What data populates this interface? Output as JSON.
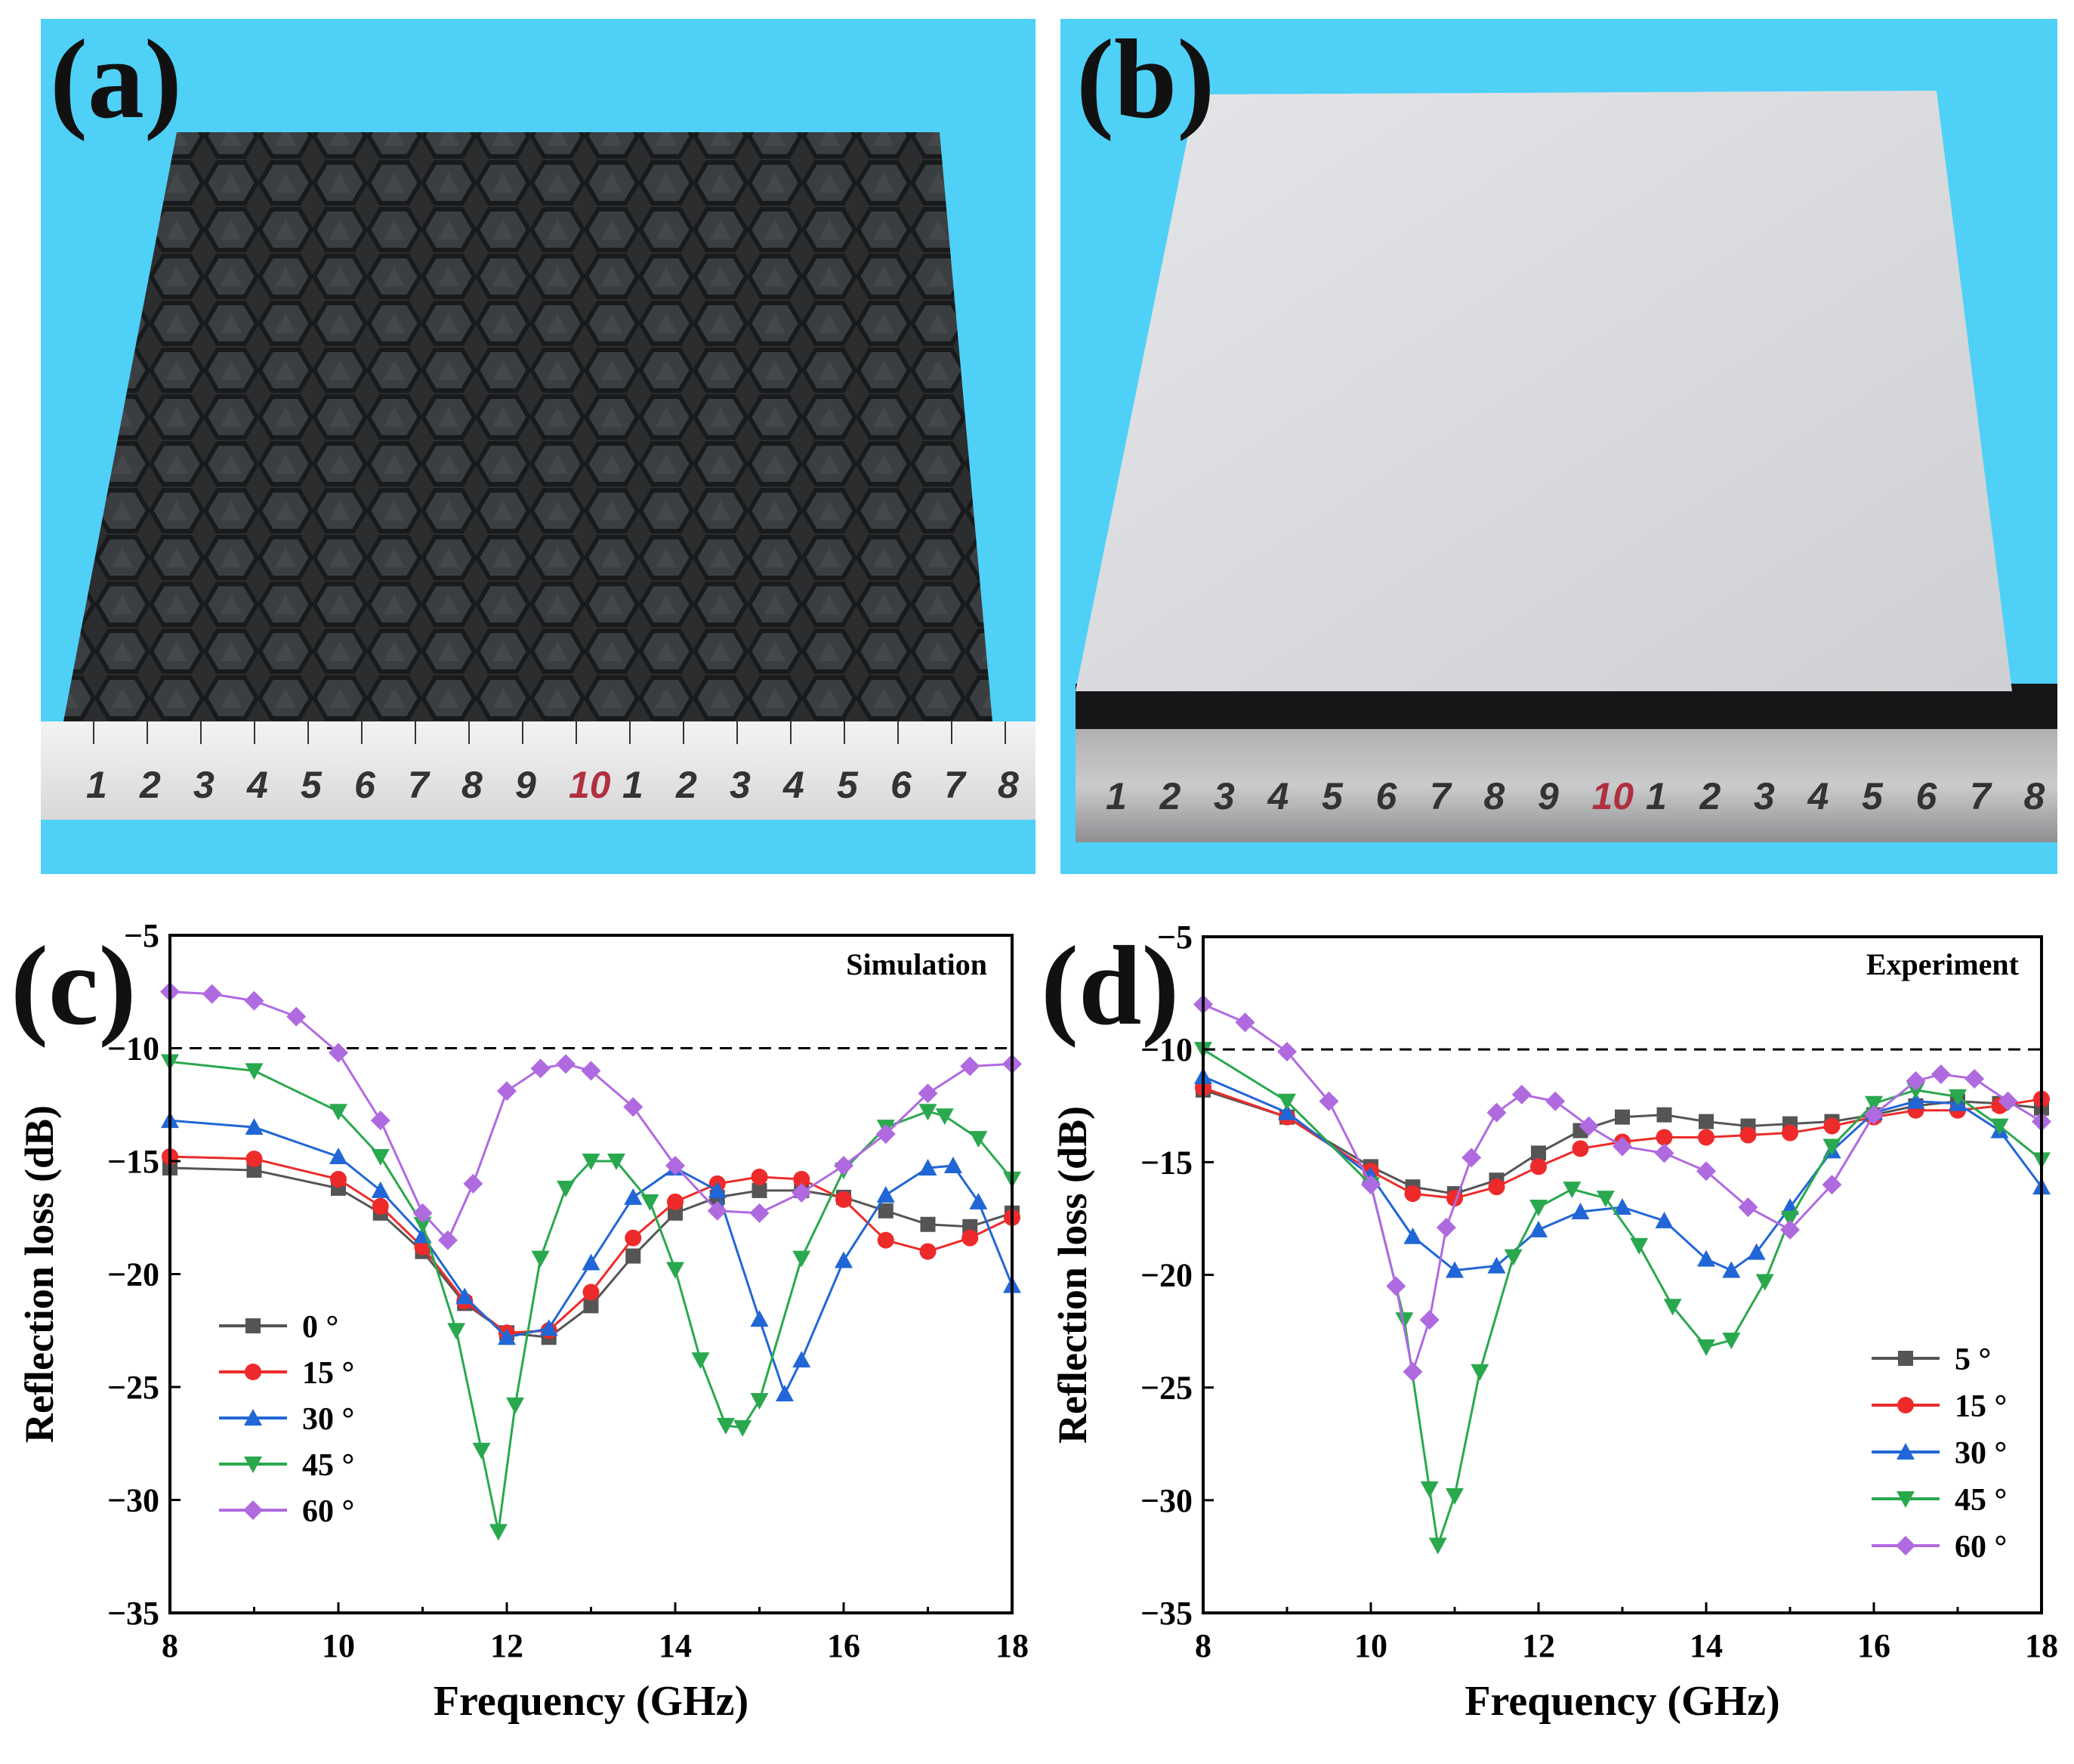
{
  "panels": {
    "a": {
      "label": "(a)"
    },
    "b": {
      "label": "(b)"
    },
    "c": {
      "label": "(c)"
    },
    "d": {
      "label": "(d)"
    }
  },
  "ruler_a": {
    "ticks": [
      "1",
      "2",
      "3",
      "4",
      "5",
      "6",
      "7",
      "8",
      "9",
      "10",
      "1",
      "2",
      "3",
      "4",
      "5",
      "6",
      "7",
      "8"
    ]
  },
  "ruler_b": {
    "ticks": [
      "1",
      "2",
      "3",
      "4",
      "5",
      "6",
      "7",
      "8",
      "9",
      "10",
      "1",
      "2",
      "3",
      "4",
      "5",
      "6",
      "7",
      "8"
    ]
  },
  "colors": {
    "background_photo": "#4fd0f7",
    "absorber": "#2b2d2f",
    "plate": "#d9dadd",
    "s0": "#555555",
    "s15": "#ee2a2a",
    "s30": "#2166d6",
    "s45": "#2aa84e",
    "s60": "#b06ae0"
  },
  "chart_data": [
    {
      "type": "line",
      "title": "Simulation",
      "xlabel": "Frequency (GHz)",
      "ylabel": "Reflection loss (dB)",
      "xlim": [
        8,
        18
      ],
      "ylim": [
        -35,
        -5
      ],
      "xticks": [
        "8",
        "10",
        "12",
        "14",
        "16",
        "18"
      ],
      "yticks": [
        "−5",
        "−10",
        "−15",
        "−20",
        "−25",
        "−30",
        "−35"
      ],
      "reference_line": -10,
      "legend_position": "left-bottom",
      "series": [
        {
          "name": "0 °",
          "marker": "square",
          "color": "#555555",
          "x": [
            8,
            9,
            10,
            10.5,
            11,
            11.5,
            12,
            12.5,
            13,
            13.5,
            14,
            14.5,
            15,
            15.5,
            16,
            16.5,
            17,
            17.5,
            18
          ],
          "y": [
            -15.3,
            -15.4,
            -16.2,
            -17.3,
            -19.0,
            -21.3,
            -22.6,
            -22.8,
            -21.4,
            -19.2,
            -17.3,
            -16.6,
            -16.3,
            -16.3,
            -16.6,
            -17.2,
            -17.8,
            -17.9,
            -17.3
          ]
        },
        {
          "name": "15 °",
          "marker": "circle",
          "color": "#ee2a2a",
          "x": [
            8,
            9,
            10,
            10.5,
            11,
            11.5,
            12,
            12.5,
            13,
            13.5,
            14,
            14.5,
            15,
            15.5,
            16,
            16.5,
            17,
            17.5,
            18
          ],
          "y": [
            -14.8,
            -14.9,
            -15.8,
            -17.0,
            -18.8,
            -21.2,
            -22.6,
            -22.5,
            -20.8,
            -18.4,
            -16.8,
            -16.0,
            -15.7,
            -15.8,
            -16.7,
            -18.5,
            -19.0,
            -18.4,
            -17.5
          ]
        },
        {
          "name": "30 °",
          "marker": "triangle-up",
          "color": "#2166d6",
          "x": [
            8,
            9,
            10,
            10.5,
            11,
            11.5,
            12,
            12.5,
            13,
            13.5,
            14,
            14.5,
            15,
            15.3,
            15.5,
            16,
            16.5,
            17,
            17.3,
            17.6,
            18
          ],
          "y": [
            -13.2,
            -13.5,
            -14.8,
            -16.3,
            -18.3,
            -21.0,
            -22.8,
            -22.4,
            -19.5,
            -16.6,
            -15.3,
            -16.3,
            -22.0,
            -25.3,
            -23.8,
            -19.4,
            -16.5,
            -15.3,
            -15.2,
            -16.8,
            -20.5
          ]
        },
        {
          "name": "45 °",
          "marker": "triangle-down",
          "color": "#2aa84e",
          "x": [
            8,
            9,
            10,
            10.5,
            11,
            11.4,
            11.7,
            11.9,
            12.1,
            12.4,
            12.7,
            13,
            13.3,
            13.7,
            14,
            14.3,
            14.6,
            14.8,
            15,
            15.5,
            16,
            16.5,
            17,
            17.2,
            17.6,
            18
          ],
          "y": [
            -10.6,
            -11.0,
            -12.8,
            -14.8,
            -17.8,
            -22.5,
            -27.8,
            -31.4,
            -25.8,
            -19.3,
            -16.2,
            -15.0,
            -15.0,
            -16.8,
            -19.8,
            -23.8,
            -26.7,
            -26.8,
            -25.6,
            -19.3,
            -15.4,
            -13.5,
            -12.8,
            -13.0,
            -14.0,
            -15.8
          ]
        },
        {
          "name": "60 °",
          "marker": "diamond",
          "color": "#b06ae0",
          "x": [
            8,
            8.5,
            9,
            9.5,
            10,
            10.5,
            11,
            11.3,
            11.6,
            12,
            12.4,
            12.7,
            13,
            13.5,
            14,
            14.5,
            15,
            15.5,
            16,
            16.5,
            17,
            17.5,
            18
          ],
          "y": [
            -7.5,
            -7.6,
            -7.9,
            -8.6,
            -10.2,
            -13.2,
            -17.3,
            -18.5,
            -16.0,
            -11.9,
            -10.9,
            -10.7,
            -11.0,
            -12.6,
            -15.2,
            -17.2,
            -17.3,
            -16.4,
            -15.2,
            -13.8,
            -12.0,
            -10.8,
            -10.7
          ]
        }
      ]
    },
    {
      "type": "line",
      "title": "Experiment",
      "xlabel": "Frequency (GHz)",
      "ylabel": "Reflection loss (dB)",
      "xlim": [
        8,
        18
      ],
      "ylim": [
        -35,
        -5
      ],
      "xticks": [
        "8",
        "10",
        "12",
        "14",
        "16",
        "18"
      ],
      "yticks": [
        "−5",
        "−10",
        "−15",
        "−20",
        "−25",
        "−30",
        "−35"
      ],
      "reference_line": -10,
      "legend_position": "bottom-right",
      "series": [
        {
          "name": "5 °",
          "marker": "square",
          "color": "#555555",
          "x": [
            8,
            9,
            10,
            10.5,
            11,
            11.5,
            12,
            12.5,
            13,
            13.5,
            14,
            14.5,
            15,
            15.5,
            16,
            16.5,
            17,
            17.5,
            18
          ],
          "y": [
            -11.8,
            -13.0,
            -15.2,
            -16.1,
            -16.4,
            -15.8,
            -14.6,
            -13.6,
            -13.0,
            -12.9,
            -13.2,
            -13.4,
            -13.3,
            -13.2,
            -12.9,
            -12.5,
            -12.3,
            -12.4,
            -12.6
          ]
        },
        {
          "name": "15 °",
          "marker": "circle",
          "color": "#ee2a2a",
          "x": [
            8,
            9,
            10,
            10.5,
            11,
            11.5,
            12,
            12.5,
            13,
            13.5,
            14,
            14.5,
            15,
            15.5,
            16,
            16.5,
            17,
            17.5,
            18
          ],
          "y": [
            -11.7,
            -13.0,
            -15.4,
            -16.4,
            -16.6,
            -16.1,
            -15.2,
            -14.4,
            -14.1,
            -13.9,
            -13.9,
            -13.8,
            -13.7,
            -13.4,
            -13.0,
            -12.7,
            -12.7,
            -12.5,
            -12.2
          ]
        },
        {
          "name": "30 °",
          "marker": "triangle-up",
          "color": "#2166d6",
          "x": [
            8,
            9,
            10,
            10.5,
            11,
            11.5,
            12,
            12.5,
            13,
            13.5,
            14,
            14.3,
            14.6,
            15,
            15.5,
            16,
            16.5,
            17,
            17.5,
            18
          ],
          "y": [
            -11.2,
            -12.8,
            -15.6,
            -18.3,
            -19.8,
            -19.6,
            -18.0,
            -17.2,
            -17.0,
            -17.6,
            -19.3,
            -19.8,
            -19.0,
            -17.0,
            -14.5,
            -12.8,
            -12.3,
            -12.4,
            -13.6,
            -16.1
          ]
        },
        {
          "name": "45 °",
          "marker": "triangle-down",
          "color": "#2aa84e",
          "x": [
            8,
            9,
            10,
            10.4,
            10.7,
            10.8,
            11,
            11.3,
            11.7,
            12,
            12.4,
            12.8,
            13.2,
            13.6,
            14,
            14.3,
            14.7,
            15,
            15.5,
            16,
            16.5,
            17,
            17.5,
            18
          ],
          "y": [
            -10.0,
            -12.3,
            -16.0,
            -22.0,
            -29.5,
            -32.0,
            -29.8,
            -24.3,
            -19.2,
            -17.0,
            -16.2,
            -16.6,
            -18.7,
            -21.4,
            -23.2,
            -22.9,
            -20.3,
            -17.5,
            -14.3,
            -12.4,
            -11.8,
            -12.1,
            -13.4,
            -14.9
          ]
        },
        {
          "name": "60 °",
          "marker": "diamond",
          "color": "#b06ae0",
          "x": [
            8,
            8.5,
            9,
            9.5,
            10,
            10.3,
            10.5,
            10.7,
            10.9,
            11.2,
            11.5,
            11.8,
            12.2,
            12.6,
            13,
            13.5,
            14,
            14.5,
            15,
            15.5,
            16,
            16.5,
            16.8,
            17.2,
            17.6,
            18
          ],
          "y": [
            -8.0,
            -8.8,
            -10.1,
            -12.3,
            -16.0,
            -20.5,
            -24.3,
            -22.0,
            -17.9,
            -14.8,
            -12.8,
            -12.0,
            -12.3,
            -13.4,
            -14.3,
            -14.6,
            -15.4,
            -17.0,
            -18.0,
            -16.0,
            -12.9,
            -11.4,
            -11.1,
            -11.3,
            -12.3,
            -13.2
          ]
        }
      ]
    }
  ]
}
